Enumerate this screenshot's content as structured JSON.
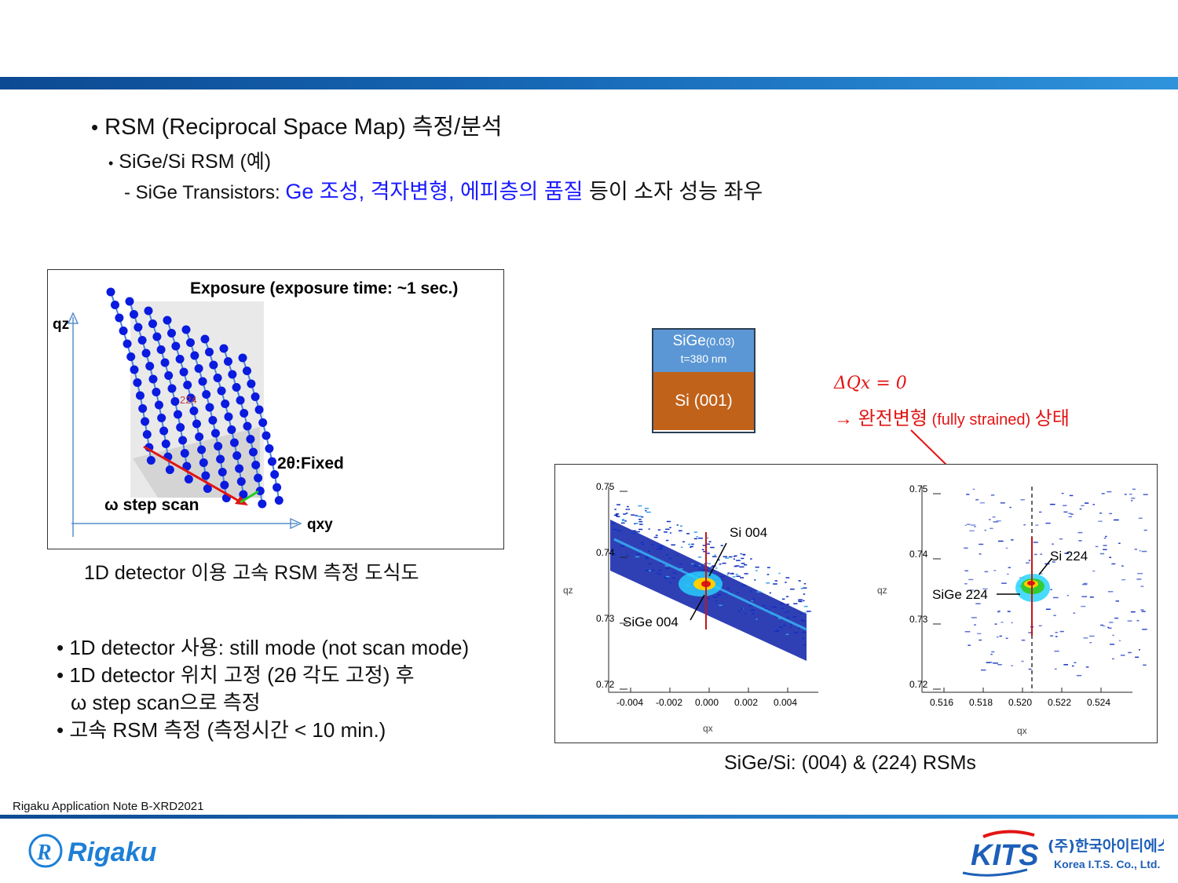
{
  "bullets": {
    "main": "RSM (Reciprocal Space Map) 측정/분석",
    "sub": "SiGe/Si RSM (예)",
    "line_prefix": "- SiGe Transistors: ",
    "line_blue": "Ge 조성, 격자변형, 에피층의 품질",
    "line_suffix": " 등이 소자 성능 좌우"
  },
  "diagram": {
    "exposure": "Exposure (exposure time: ~1 sec.)",
    "qz": "qz",
    "qxy": "qxy",
    "two_theta": "2θ:Fixed",
    "omega": "ω step scan",
    "peak": "224",
    "caption": "1D detector 이용 고속 RSM 측정 도식도"
  },
  "notes": [
    "• 1D detector 사용: still mode (not scan mode)",
    "• 1D detector 위치 고정 (2θ 각도 고정) 후",
    "  ω step scan으로 측정",
    "• 고속 RSM 측정 (측정시간 < 10 min.)"
  ],
  "stack": {
    "top": "SiGe",
    "top_sub": "(0.03)",
    "thickness": "t=380 nm",
    "bottom": "Si (001)"
  },
  "annotation": {
    "delta": "ΔQx = 0",
    "arrow_text": "→ 완전변형",
    "paren": " (fully strained) ",
    "state": "상태"
  },
  "rsm": {
    "caption": "SiGe/Si: (004) & (224) RSMs",
    "left": {
      "xticks": [
        "-0.004",
        "-0.002",
        "0.000",
        "0.002",
        "0.004"
      ],
      "yticks": [
        "0.75",
        "0.74",
        "0.73",
        "0.72"
      ],
      "xlabel": "qx",
      "ylabel": "qz",
      "label_si": "Si 004",
      "label_sige": "SiGe 004"
    },
    "right": {
      "xticks": [
        "0.516",
        "0.518",
        "0.520",
        "0.522",
        "0.524"
      ],
      "yticks": [
        "0.75",
        "0.74",
        "0.73",
        "0.72"
      ],
      "xlabel": "qx",
      "ylabel": "qz",
      "label_si": "Si 224",
      "label_sige": "SiGe 224"
    }
  },
  "footer": {
    "note": "Rigaku Application Note B-XRD2021",
    "rigaku": "Rigaku",
    "kits": "KITS",
    "kits_kr": "(주)한국아이티에스",
    "kits_en": "Korea I.T.S. Co., Ltd."
  }
}
